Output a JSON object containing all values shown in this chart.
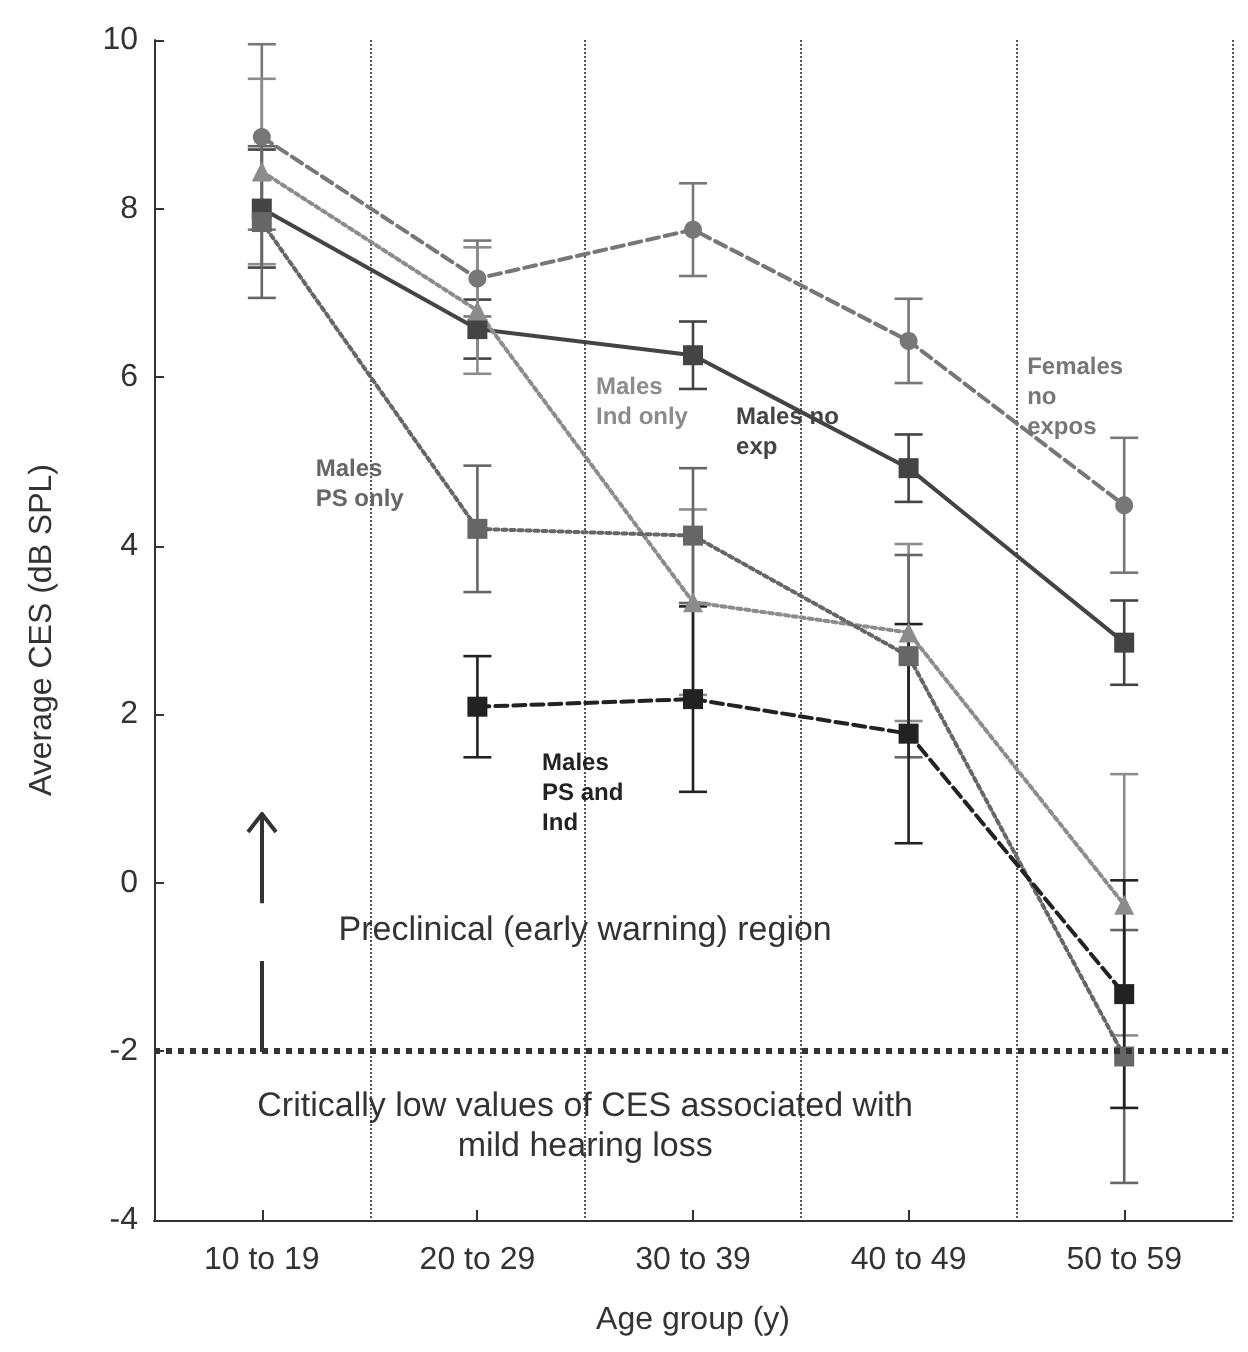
{
  "chart_data": {
    "type": "line",
    "xlabel": "Age group (y)",
    "ylabel": "Average CES (dB SPL)",
    "categories": [
      "10 to 19",
      "20 to 29",
      "30 to 39",
      "40 to 49",
      "50 to 59"
    ],
    "series": [
      {
        "name": "Females no expos",
        "color": "#777777",
        "marker": "circle",
        "line_style": "dashed",
        "values": [
          8.85,
          7.17,
          7.75,
          6.43,
          4.48
        ],
        "errors": [
          1.1,
          0.45,
          0.55,
          0.5,
          0.8
        ]
      },
      {
        "name": "Males no exp",
        "color": "#444444",
        "marker": "square",
        "line_style": "solid",
        "values": [
          8.0,
          6.57,
          6.26,
          4.92,
          2.85
        ],
        "errors": [
          0.7,
          0.35,
          0.4,
          0.4,
          0.5
        ]
      },
      {
        "name": "Males Ind only",
        "color": "#8c8c8c",
        "marker": "triangle",
        "line_style": "dotted",
        "values": [
          8.44,
          6.79,
          3.33,
          2.97,
          -0.26
        ],
        "errors": [
          1.1,
          0.75,
          1.1,
          1.05,
          1.55
        ]
      },
      {
        "name": "Males PS only",
        "color": "#666666",
        "marker": "square",
        "line_style": "dotted",
        "values": [
          7.84,
          4.2,
          4.12,
          2.69,
          -2.06
        ],
        "errors": [
          0.9,
          0.75,
          0.8,
          1.2,
          1.5
        ]
      },
      {
        "name": "Males PS and Ind",
        "color": "#222222",
        "marker": "square",
        "line_style": "dashed",
        "values": [
          null,
          2.09,
          2.18,
          1.77,
          -1.32
        ],
        "errors": [
          null,
          0.6,
          1.1,
          1.3,
          1.35
        ]
      }
    ],
    "ylim": [
      -4,
      10
    ],
    "yticks": [
      -4,
      -2,
      0,
      2,
      4,
      6,
      8,
      10
    ],
    "grid": "x",
    "legend": false,
    "ref_lines": [
      {
        "axis": "y",
        "value": -2,
        "color": "#333333",
        "line_style": "dotted"
      }
    ],
    "annotations": [
      "Preclinical (early warning) region",
      "Critically low values of CES associated with mild hearing loss"
    ]
  }
}
